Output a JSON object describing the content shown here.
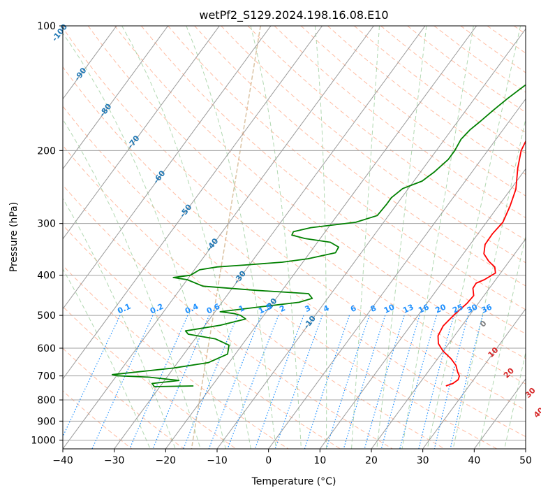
{
  "chart_data": {
    "type": "line",
    "title": "wetPf2_S129.2024.198.16.08.E10",
    "xlabel": "Temperature (°C)",
    "ylabel": "Pressure (hPa)",
    "xlim": [
      -40,
      50
    ],
    "ylim": [
      1050,
      100
    ],
    "y_scale": "log",
    "grid": true,
    "x_ticks": [
      -40,
      -30,
      -20,
      -10,
      0,
      10,
      20,
      30,
      40,
      50
    ],
    "y_ticks": [
      100,
      200,
      300,
      400,
      500,
      600,
      700,
      800,
      900,
      1000
    ],
    "series": [
      {
        "role": "temperature",
        "color": "#ff0000",
        "points": [
          [
            25.5,
            740
          ],
          [
            26.5,
            730
          ],
          [
            27,
            715
          ],
          [
            26.7,
            700
          ],
          [
            25.8,
            685
          ],
          [
            24.5,
            660
          ],
          [
            22.5,
            635
          ],
          [
            20,
            610
          ],
          [
            18,
            585
          ],
          [
            16.8,
            560
          ],
          [
            16.4,
            530
          ],
          [
            16.9,
            500
          ],
          [
            17.8,
            468
          ],
          [
            18,
            448
          ],
          [
            16.8,
            430
          ],
          [
            16.7,
            418
          ],
          [
            17.8,
            410
          ],
          [
            19,
            395
          ],
          [
            18,
            382
          ],
          [
            16,
            370
          ],
          [
            14,
            355
          ],
          [
            12.9,
            337
          ],
          [
            12.8,
            318
          ],
          [
            13.2,
            298
          ],
          [
            12.3,
            273
          ],
          [
            11,
            248
          ],
          [
            8.3,
            220
          ],
          [
            6.5,
            200
          ],
          [
            5.6,
            180
          ],
          [
            5.3,
            165
          ],
          [
            4.7,
            155
          ],
          [
            3.5,
            145
          ],
          [
            2.3,
            134
          ],
          [
            2.1,
            126
          ],
          [
            2.6,
            116
          ],
          [
            2.4,
            107
          ],
          [
            3.7,
            100
          ]
        ]
      },
      {
        "role": "dewpoint",
        "color": "#008000",
        "points": [
          [
            -23.6,
            740
          ],
          [
            -31.1,
            743
          ],
          [
            -32,
            730
          ],
          [
            -27.2,
            718
          ],
          [
            -33.4,
            705
          ],
          [
            -40,
            699
          ],
          [
            -41,
            695
          ],
          [
            -30,
            670
          ],
          [
            -24,
            650
          ],
          [
            -21.5,
            620
          ],
          [
            -22.5,
            590
          ],
          [
            -26,
            570
          ],
          [
            -32,
            555
          ],
          [
            -33,
            545
          ],
          [
            -27,
            528
          ],
          [
            -23,
            510
          ],
          [
            -24.5,
            500
          ],
          [
            -26,
            495
          ],
          [
            -29,
            490
          ],
          [
            -22.5,
            478
          ],
          [
            -15,
            465
          ],
          [
            -13,
            455
          ],
          [
            -14.4,
            443
          ],
          [
            -25,
            435
          ],
          [
            -36,
            425
          ],
          [
            -40,
            410
          ],
          [
            -43,
            405
          ],
          [
            -40,
            400
          ],
          [
            -39,
            388
          ],
          [
            -36,
            382
          ],
          [
            -31,
            378
          ],
          [
            -24,
            372
          ],
          [
            -19.5,
            365
          ],
          [
            -15,
            353
          ],
          [
            -15.2,
            342
          ],
          [
            -17.5,
            333
          ],
          [
            -23,
            326
          ],
          [
            -26,
            320
          ],
          [
            -26.2,
            314
          ],
          [
            -23.4,
            307
          ],
          [
            -15.4,
            298
          ],
          [
            -12.2,
            287
          ],
          [
            -12,
            270
          ],
          [
            -12,
            260
          ],
          [
            -11.1,
            247
          ],
          [
            -8.4,
            237
          ],
          [
            -7.3,
            225
          ],
          [
            -6.4,
            210
          ],
          [
            -6.4,
            200
          ],
          [
            -6.8,
            188
          ],
          [
            -6.4,
            178
          ],
          [
            -5.6,
            170
          ],
          [
            -4.7,
            160
          ],
          [
            -3.6,
            150
          ],
          [
            -2.2,
            140
          ],
          [
            -0.5,
            130
          ],
          [
            0.5,
            120
          ],
          [
            1.5,
            112
          ],
          [
            2.4,
            105
          ],
          [
            3,
            100
          ]
        ]
      }
    ],
    "isotherm_labels": [
      "-100",
      "-90",
      "-80",
      "-70",
      "-60",
      "-50",
      "-40",
      "-30",
      "-20",
      "-10"
    ],
    "mixing_ratio_labels": [
      "0.1",
      "0.2",
      "0.4",
      "0.6",
      "1",
      "1.5",
      "2",
      "3",
      "4",
      "6",
      "8",
      "10",
      "13",
      "16",
      "20",
      "25",
      "30",
      "36"
    ],
    "dry_adiabat_labels": [
      "0",
      "10",
      "20",
      "30",
      "40"
    ],
    "colors": {
      "isotherm": "#1f77b4",
      "isobar": "#a0a0a0",
      "mixing_ratio": "#1e90ff",
      "dry_adiabat": "#ffa07a",
      "moist_adiabat": "#90c890",
      "dry_adiabat_label": "#d62728",
      "zero_label": "#808080",
      "boundary": "#d2b48c"
    }
  }
}
